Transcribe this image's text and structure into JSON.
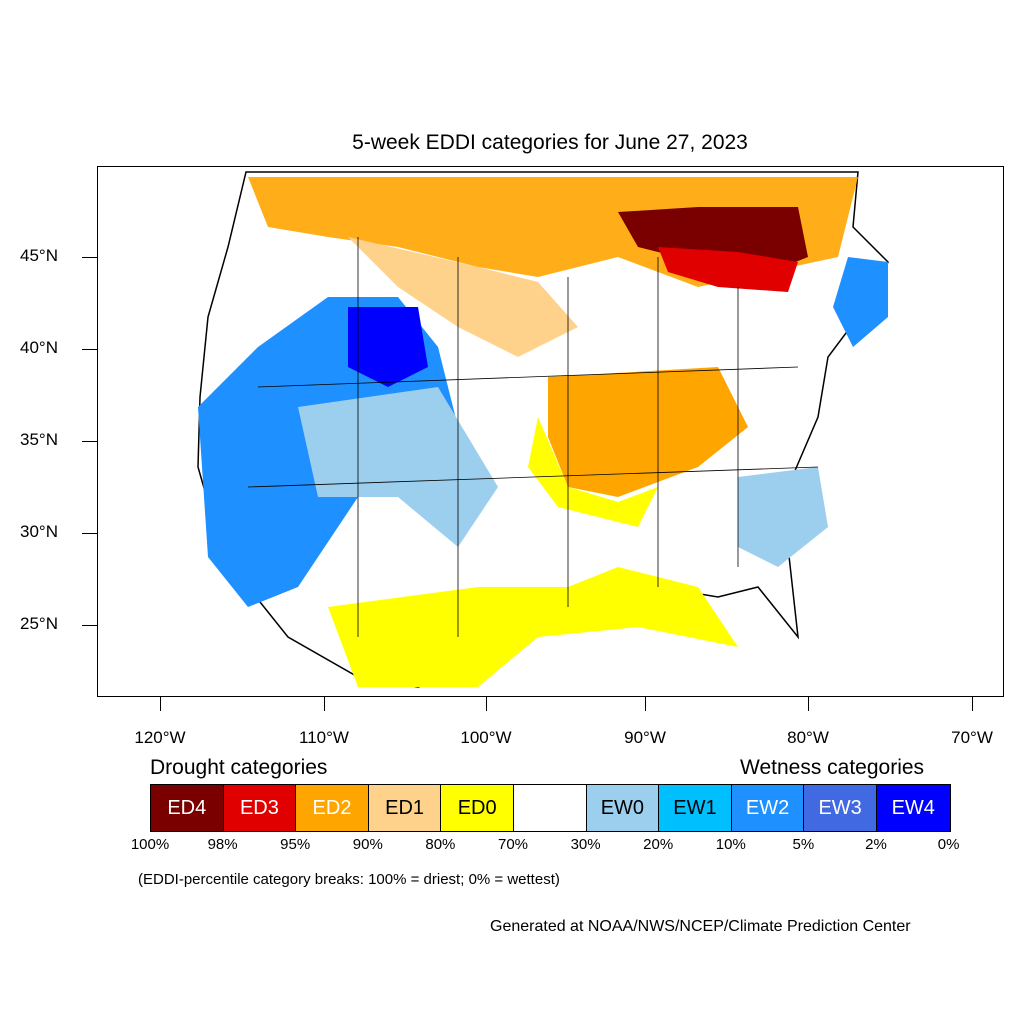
{
  "title": "5-week EDDI categories for June 27, 2023",
  "lat_labels": [
    "45°N",
    "40°N",
    "35°N",
    "30°N",
    "25°N"
  ],
  "lon_labels": [
    "120°W",
    "110°W",
    "100°W",
    "90°W",
    "80°W",
    "70°W"
  ],
  "legend": {
    "drought_heading": "Drought categories",
    "wetness_heading": "Wetness categories",
    "categories": [
      {
        "label": "ED4",
        "color": "#7a0000",
        "text_color": "#ffffff"
      },
      {
        "label": "ED3",
        "color": "#e00000",
        "text_color": "#ffffff"
      },
      {
        "label": "ED2",
        "color": "#ffa500",
        "text_color": "#ffffff"
      },
      {
        "label": "ED1",
        "color": "#fed28a",
        "text_color": "#000000"
      },
      {
        "label": "ED0",
        "color": "#ffff00",
        "text_color": "#000000"
      },
      {
        "label": "",
        "color": "#ffffff",
        "text_color": "#000000"
      },
      {
        "label": "EW0",
        "color": "#9ccfee",
        "text_color": "#000000"
      },
      {
        "label": "EW1",
        "color": "#00bfff",
        "text_color": "#000000"
      },
      {
        "label": "EW2",
        "color": "#1e90ff",
        "text_color": "#ffffff"
      },
      {
        "label": "EW3",
        "color": "#4169e1",
        "text_color": "#ffffff"
      },
      {
        "label": "EW4",
        "color": "#0000ff",
        "text_color": "#ffffff"
      }
    ],
    "breaks": [
      "100%",
      "98%",
      "95%",
      "90%",
      "80%",
      "70%",
      "30%",
      "20%",
      "10%",
      "5%",
      "2%",
      "0%"
    ]
  },
  "note": "(EDDI-percentile category breaks: 100% = driest; 0% = wettest)",
  "credit": "Generated at NOAA/NWS/NCEP/Climate Prediction Center"
}
